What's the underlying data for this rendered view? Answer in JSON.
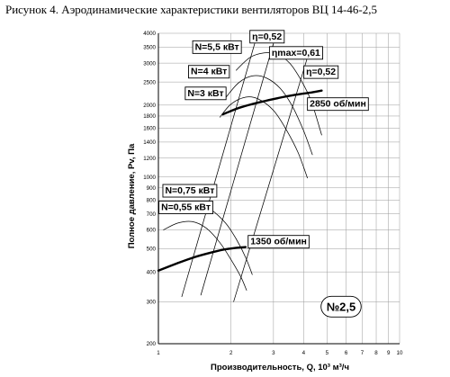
{
  "figure": {
    "title": "Рисунок 4. Аэродинамические характеристики вентиляторов ВЦ 14-46-2,5"
  },
  "chart_data": {
    "type": "line",
    "title": "Рисунок 4. Аэродинамические характеристики вентиляторов ВЦ 14-46-2,5",
    "xlabel": "Производительность, Q, 10³ м³/ч",
    "ylabel": "Полное давление, Pv, Па",
    "x_scale": "log",
    "y_scale": "log",
    "xlim": [
      1,
      10
    ],
    "ylim": [
      200,
      4000
    ],
    "grid": true,
    "x_ticks": [
      {
        "v": 1,
        "label": "1"
      },
      {
        "v": 2,
        "label": "2"
      },
      {
        "v": 3,
        "label": "3"
      },
      {
        "v": 4,
        "label": "4"
      },
      {
        "v": 5,
        "label": "5"
      },
      {
        "v": 6,
        "label": "6"
      },
      {
        "v": 7,
        "label": "7"
      },
      {
        "v": 8,
        "label": "8"
      },
      {
        "v": 9,
        "label": "9"
      },
      {
        "v": 10,
        "label": "10"
      }
    ],
    "y_ticks": [
      {
        "v": 200,
        "label": "200"
      },
      {
        "v": 300,
        "label": "300"
      },
      {
        "v": 400,
        "label": "400"
      },
      {
        "v": 500,
        "label": "500"
      },
      {
        "v": 600,
        "label": "600"
      },
      {
        "v": 700,
        "label": "700"
      },
      {
        "v": 800,
        "label": "800"
      },
      {
        "v": 900,
        "label": "900"
      },
      {
        "v": 1000,
        "label": "1000"
      },
      {
        "v": 1200,
        "label": "1200"
      },
      {
        "v": 1400,
        "label": "1400"
      },
      {
        "v": 1600,
        "label": "1600"
      },
      {
        "v": 1800,
        "label": "1800"
      },
      {
        "v": 2000,
        "label": "2000"
      },
      {
        "v": 2500,
        "label": "2500"
      },
      {
        "v": 3000,
        "label": "3000"
      },
      {
        "v": 3500,
        "label": "3500"
      },
      {
        "v": 4000,
        "label": "4000"
      }
    ],
    "series": [
      {
        "name": "2850 об/мин",
        "style": "bold",
        "points": [
          [
            1.85,
            1830
          ],
          [
            2.2,
            1960
          ],
          [
            2.7,
            2070
          ],
          [
            3.2,
            2150
          ],
          [
            3.7,
            2210
          ],
          [
            4.3,
            2260
          ],
          [
            4.75,
            2300
          ]
        ]
      },
      {
        "name": "1350 об/мин",
        "style": "bold",
        "points": [
          [
            1.0,
            405
          ],
          [
            1.2,
            435
          ],
          [
            1.4,
            460
          ],
          [
            1.6,
            478
          ],
          [
            1.85,
            495
          ],
          [
            2.05,
            503
          ],
          [
            2.3,
            508
          ]
        ]
      },
      {
        "name": "N=5,5 кВт",
        "style": "thin",
        "points": [
          [
            2.1,
            2800
          ],
          [
            2.4,
            3170
          ],
          [
            2.75,
            3310
          ],
          [
            3.1,
            3270
          ],
          [
            3.5,
            3000
          ],
          [
            3.9,
            2550
          ],
          [
            4.3,
            2080
          ],
          [
            4.75,
            1500
          ]
        ]
      },
      {
        "name": "N=4 кВт",
        "style": "thin",
        "points": [
          [
            1.9,
            2150
          ],
          [
            2.15,
            2480
          ],
          [
            2.45,
            2650
          ],
          [
            2.8,
            2600
          ],
          [
            3.2,
            2350
          ],
          [
            3.6,
            1970
          ],
          [
            4.0,
            1560
          ],
          [
            4.35,
            1240
          ]
        ]
      },
      {
        "name": "N=3 кВт",
        "style": "thin",
        "points": [
          [
            1.8,
            1780
          ],
          [
            2.0,
            2020
          ],
          [
            2.3,
            2160
          ],
          [
            2.6,
            2120
          ],
          [
            3.0,
            1900
          ],
          [
            3.4,
            1570
          ],
          [
            3.8,
            1260
          ],
          [
            4.15,
            990
          ]
        ]
      },
      {
        "name": "N=0,75 кВт",
        "style": "thin",
        "points": [
          [
            1.1,
            700
          ],
          [
            1.25,
            760
          ],
          [
            1.45,
            770
          ],
          [
            1.65,
            730
          ],
          [
            1.9,
            640
          ],
          [
            2.1,
            550
          ],
          [
            2.3,
            460
          ],
          [
            2.45,
            390
          ]
        ]
      },
      {
        "name": "N=0,55 кВт",
        "style": "thin",
        "points": [
          [
            1.05,
            600
          ],
          [
            1.2,
            640
          ],
          [
            1.38,
            650
          ],
          [
            1.58,
            610
          ],
          [
            1.8,
            530
          ],
          [
            2.0,
            450
          ],
          [
            2.2,
            380
          ],
          [
            2.32,
            335
          ]
        ]
      },
      {
        "name": "η=0,52",
        "style": "thin",
        "points": [
          [
            1.25,
            315
          ],
          [
            2.55,
            3850
          ]
        ]
      },
      {
        "name": "ηmax=0,61",
        "style": "thin",
        "points": [
          [
            1.5,
            320
          ],
          [
            3.05,
            3850
          ]
        ]
      },
      {
        "name": "η=0,52",
        "style": "thin",
        "points": [
          [
            2.05,
            300
          ],
          [
            4.2,
            3300
          ]
        ]
      }
    ],
    "annotations": [
      {
        "text": "η=0,52",
        "x": 2.82,
        "y": 3870,
        "box": true,
        "size": 10.5
      },
      {
        "text": "N=5,5 кВт",
        "x": 1.75,
        "y": 3500,
        "box": true,
        "size": 10.5
      },
      {
        "text": "ηmax=0,61",
        "x": 3.72,
        "y": 3310,
        "box": true,
        "size": 10.5
      },
      {
        "text": "N=4 кВт",
        "x": 1.62,
        "y": 2760,
        "box": true,
        "size": 10.5
      },
      {
        "text": "η=0,52",
        "x": 4.72,
        "y": 2750,
        "box": true,
        "size": 10.5
      },
      {
        "text": "N=3 кВт",
        "x": 1.57,
        "y": 2240,
        "box": true,
        "size": 10.5
      },
      {
        "text": "2850 об/мин",
        "x": 5.55,
        "y": 2020,
        "box": true,
        "size": 10.5
      },
      {
        "text": "N=0,75 кВт",
        "x": 1.35,
        "y": 875,
        "box": true,
        "size": 10.5
      },
      {
        "text": "N=0,55 кВт",
        "x": 1.3,
        "y": 745,
        "box": true,
        "size": 10.5
      },
      {
        "text": "1350 об/мин",
        "x": 3.15,
        "y": 535,
        "box": true,
        "size": 10.5
      },
      {
        "text": "№2,5",
        "x": 5.72,
        "y": 286,
        "box": "rounded",
        "size": 13
      }
    ]
  }
}
